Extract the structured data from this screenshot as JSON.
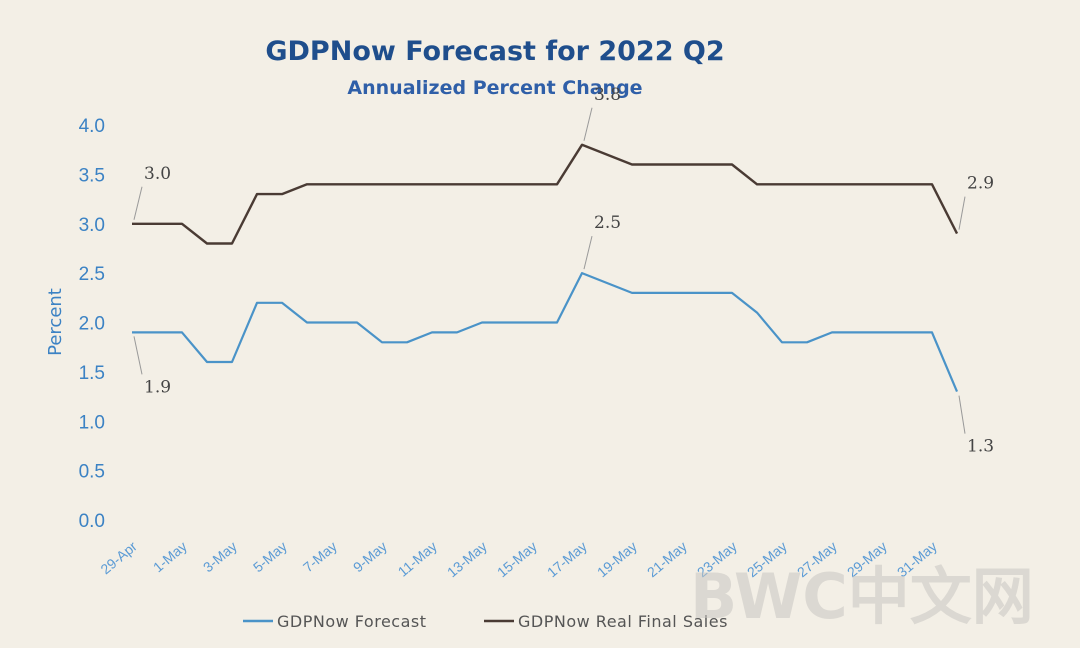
{
  "chart_data": {
    "type": "line",
    "title": "GDPNow Forecast for 2022 Q2",
    "subtitle": "Annualized Percent Change",
    "ylabel": "Percent",
    "xlabel": "",
    "ylim": [
      0,
      4
    ],
    "yticks": [
      "0.0",
      "0.5",
      "1.0",
      "1.5",
      "2.0",
      "2.5",
      "3.0",
      "3.5",
      "4.0"
    ],
    "x_tick_labels": [
      "29-Apr",
      "1-May",
      "3-May",
      "5-May",
      "7-May",
      "9-May",
      "11-May",
      "13-May",
      "15-May",
      "17-May",
      "19-May",
      "21-May",
      "23-May",
      "25-May",
      "27-May",
      "29-May",
      "31-May"
    ],
    "x_points": 34,
    "series": [
      {
        "name": "GDPNow Forecast",
        "color": "#4a93c8",
        "values": [
          1.9,
          1.9,
          1.9,
          1.6,
          1.6,
          2.2,
          2.2,
          2.0,
          2.0,
          2.0,
          1.8,
          1.8,
          1.9,
          1.9,
          2.0,
          2.0,
          2.0,
          2.0,
          2.5,
          2.4,
          2.3,
          2.3,
          2.3,
          2.3,
          2.3,
          2.1,
          1.8,
          1.8,
          1.9,
          1.9,
          1.9,
          1.9,
          1.9,
          1.3
        ]
      },
      {
        "name": "GDPNow Real Final Sales",
        "color": "#4a3b34",
        "values": [
          3.0,
          3.0,
          3.0,
          2.8,
          2.8,
          3.3,
          3.3,
          3.4,
          3.4,
          3.4,
          3.4,
          3.4,
          3.4,
          3.4,
          3.4,
          3.4,
          3.4,
          3.4,
          3.8,
          3.7,
          3.6,
          3.6,
          3.6,
          3.6,
          3.6,
          3.4,
          3.4,
          3.4,
          3.4,
          3.4,
          3.4,
          3.4,
          3.4,
          2.9
        ]
      }
    ],
    "annotations": [
      {
        "series": 0,
        "index": 0,
        "text": "1.9",
        "pos": "below"
      },
      {
        "series": 0,
        "index": 18,
        "text": "2.5",
        "pos": "above"
      },
      {
        "series": 0,
        "index": 33,
        "text": "1.3",
        "pos": "below"
      },
      {
        "series": 1,
        "index": 0,
        "text": "3.0",
        "pos": "above"
      },
      {
        "series": 1,
        "index": 18,
        "text": "3.8",
        "pos": "above"
      },
      {
        "series": 1,
        "index": 33,
        "text": "2.9",
        "pos": "above"
      }
    ],
    "legend": [
      "GDPNow Forecast",
      "GDPNow Real Final Sales"
    ],
    "legend_position": "bottom",
    "grid": false
  },
  "watermark": "BWC中文网"
}
